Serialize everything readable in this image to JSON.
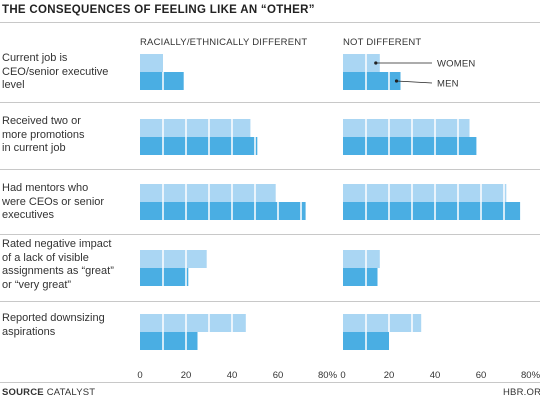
{
  "header": {
    "title": "THE CONSEQUENCES OF FEELING LIKE AN “OTHER”"
  },
  "chart_data": {
    "type": "bar",
    "panels": [
      "RACIALLY/ETHNICALLY DIFFERENT",
      "NOT DIFFERENT"
    ],
    "categories": [
      "Current job is CEO/senior executive level",
      "Received two or more promotions in current job",
      "Had mentors who were CEOs or senior executives",
      "Rated negative impact of a lack of visible assignments as “great” or “very great”",
      "Reported downsizing aspirations"
    ],
    "category_lines": [
      [
        "Current job is",
        "CEO/senior executive",
        "level"
      ],
      [
        "Received two or",
        "more promotions",
        "in current job"
      ],
      [
        "Had mentors who",
        "were CEOs or senior",
        "executives"
      ],
      [
        "Rated negative impact",
        "of a lack of visible",
        "assignments as “great”",
        "or “very great”"
      ],
      [
        "Reported downsizing",
        "aspirations"
      ]
    ],
    "series": [
      {
        "name": "WOMEN",
        "color": "#aad6f3",
        "racially_different": [
          10,
          48,
          59,
          29,
          46
        ],
        "not_different": [
          16,
          55,
          71,
          16,
          34
        ]
      },
      {
        "name": "MEN",
        "color": "#4aaee3",
        "racially_different": [
          19,
          51,
          72,
          21,
          25
        ],
        "not_different": [
          25,
          58,
          77,
          15,
          20
        ]
      }
    ],
    "x_ticks": [
      "0",
      "20",
      "40",
      "60",
      "80%"
    ],
    "xlim": [
      0,
      80
    ],
    "legend_placement": "top-right"
  },
  "footer": {
    "source_label": "SOURCE",
    "source_value": "CATALYST",
    "brand": "HBR.ORG"
  }
}
